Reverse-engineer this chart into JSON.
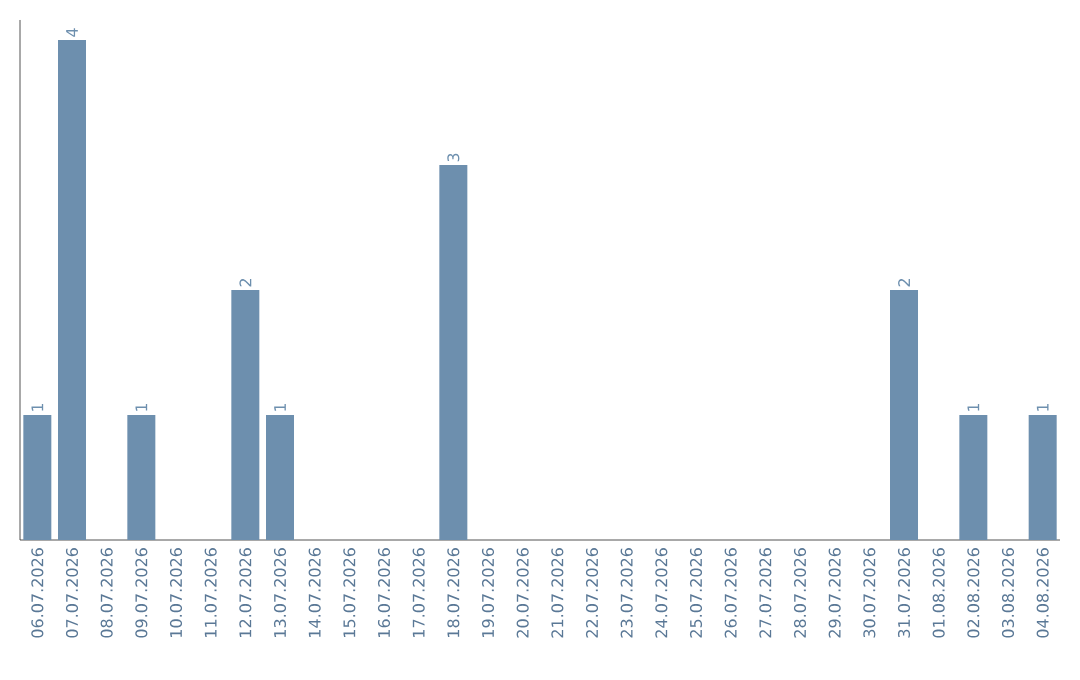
{
  "chart_data": {
    "type": "bar",
    "categories": [
      "06.07.2026",
      "07.07.2026",
      "08.07.2026",
      "09.07.2026",
      "10.07.2026",
      "11.07.2026",
      "12.07.2026",
      "13.07.2026",
      "14.07.2026",
      "15.07.2026",
      "16.07.2026",
      "17.07.2026",
      "18.07.2026",
      "19.07.2026",
      "20.07.2026",
      "21.07.2026",
      "22.07.2026",
      "23.07.2026",
      "24.07.2026",
      "25.07.2026",
      "26.07.2026",
      "27.07.2026",
      "28.07.2026",
      "29.07.2026",
      "30.07.2026",
      "31.07.2026",
      "01.08.2026",
      "02.08.2026",
      "03.08.2026",
      "04.08.2026"
    ],
    "values": [
      1,
      4,
      0,
      1,
      0,
      0,
      2,
      1,
      0,
      0,
      0,
      0,
      3,
      0,
      0,
      0,
      0,
      0,
      0,
      0,
      0,
      0,
      0,
      0,
      0,
      2,
      0,
      1,
      0,
      1
    ],
    "value_labels": [
      "1",
      "4",
      null,
      "1",
      null,
      null,
      "2",
      "1",
      null,
      null,
      null,
      null,
      "3",
      null,
      null,
      null,
      null,
      null,
      null,
      null,
      null,
      null,
      null,
      null,
      null,
      "2",
      null,
      "1",
      null,
      "1"
    ],
    "color": "#6d8fae",
    "ylim": [
      0,
      4.16
    ],
    "tick_labels": "x"
  }
}
